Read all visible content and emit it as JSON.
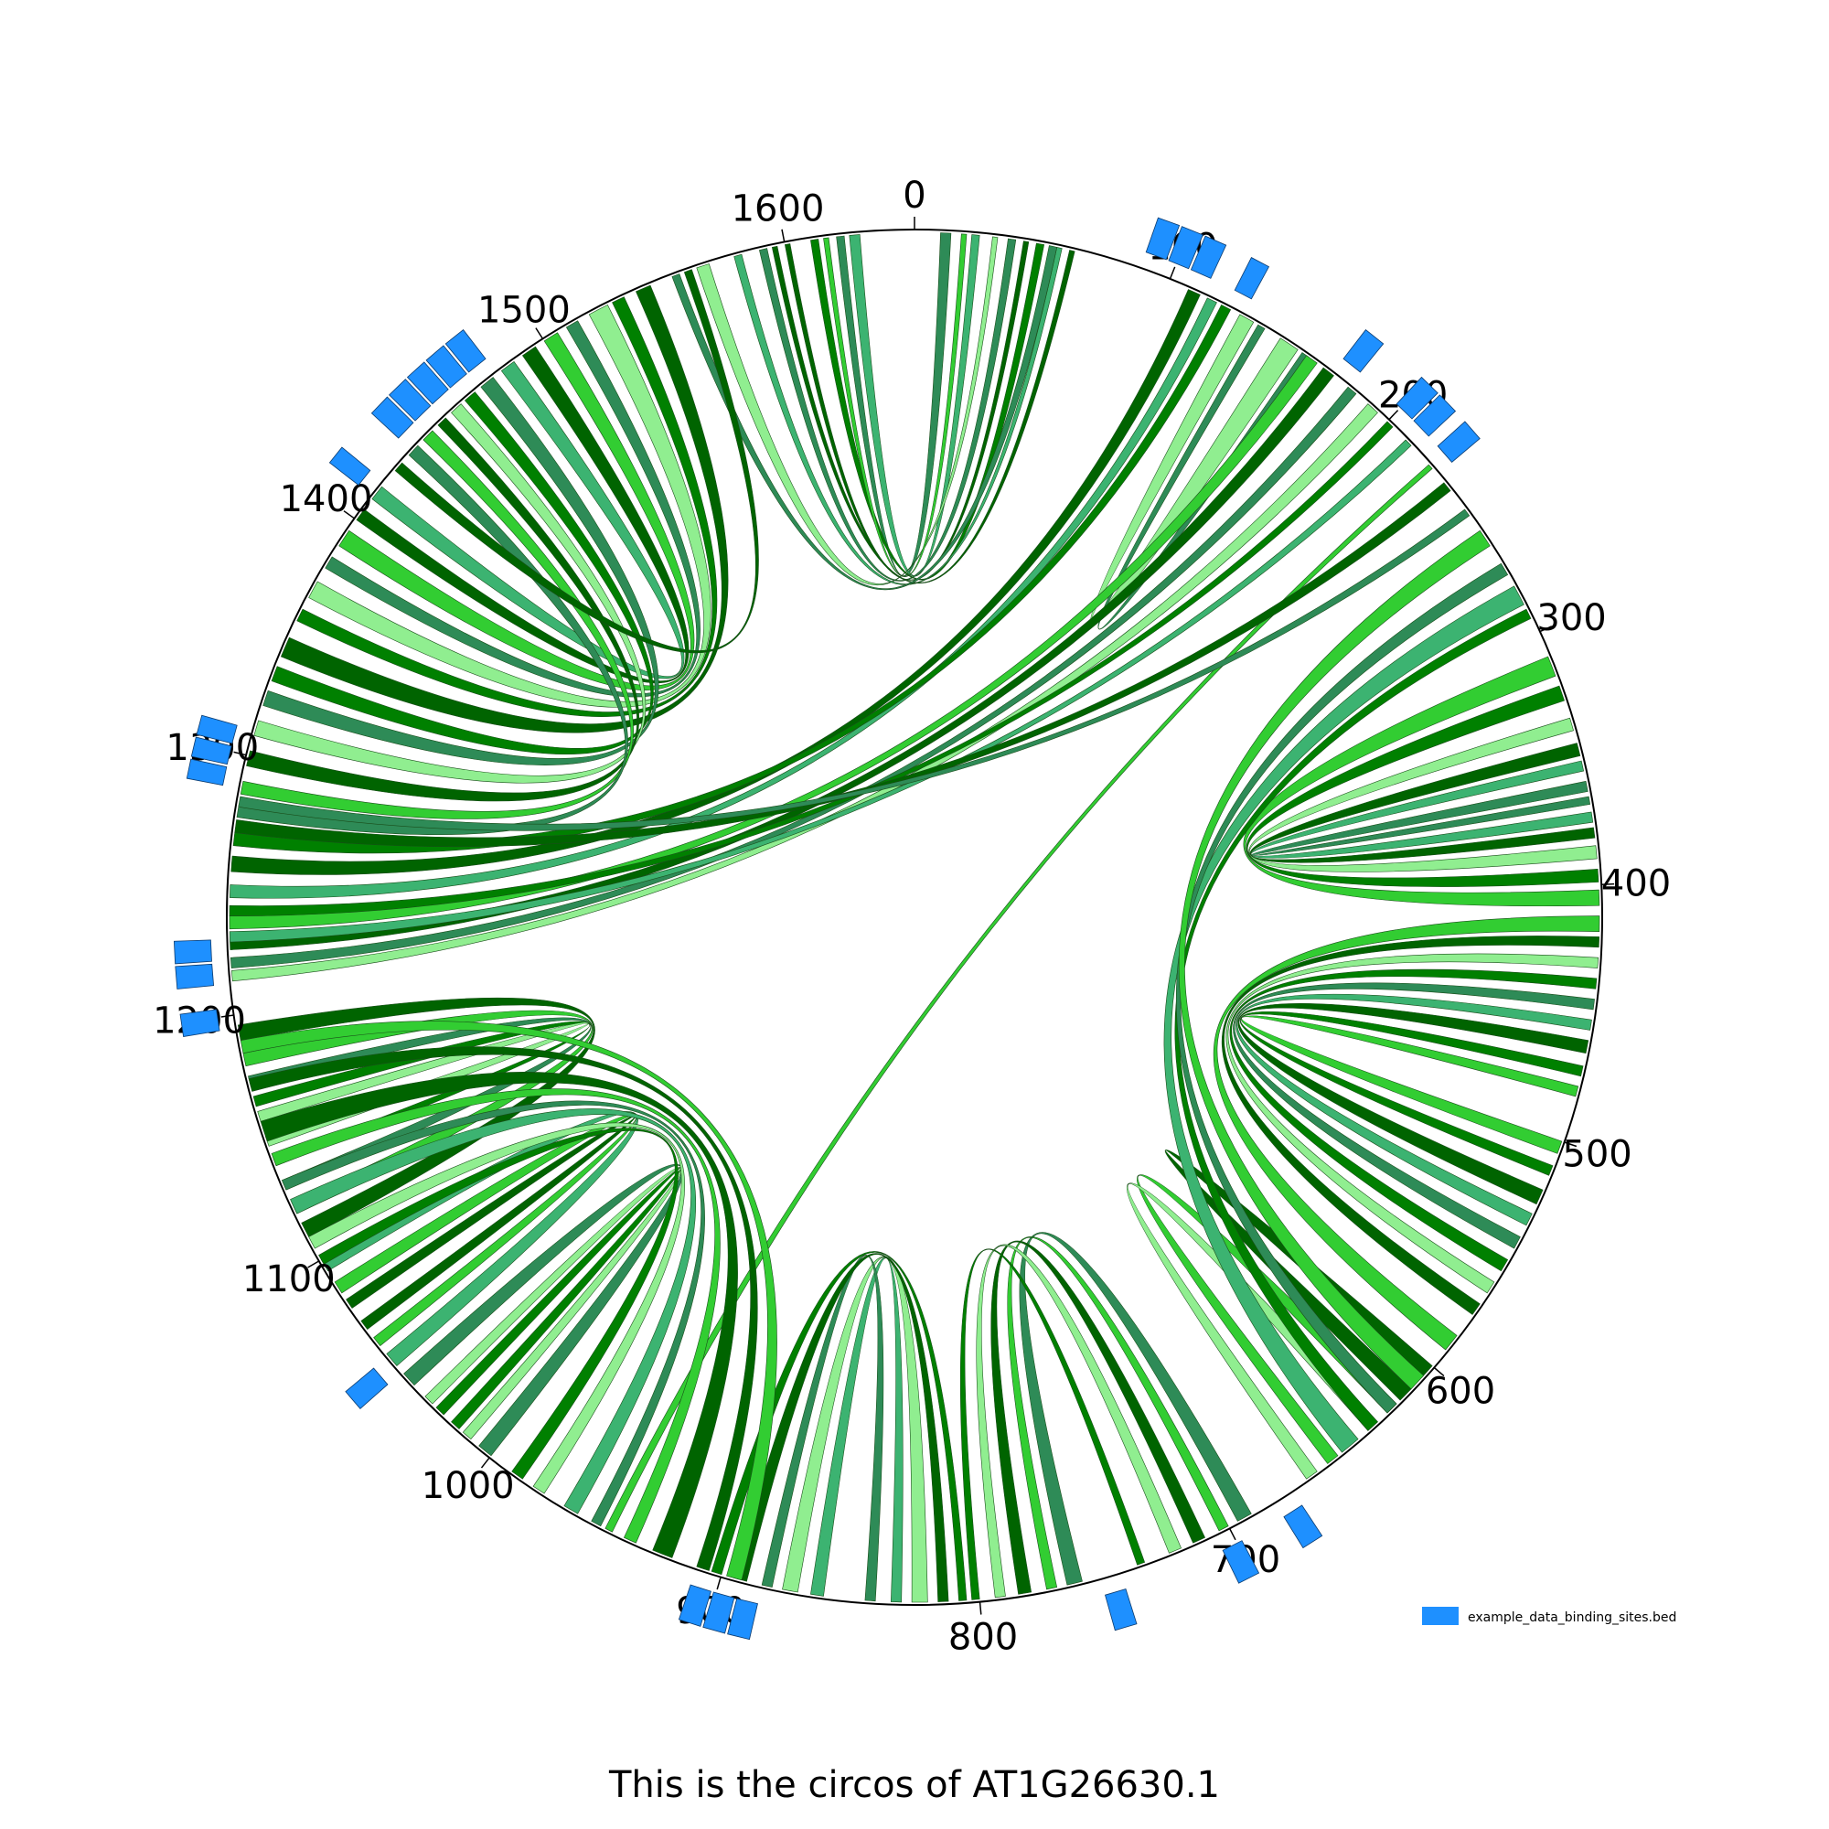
{
  "chart_data": {
    "type": "circos",
    "title": "This is the circos of AT1G26630.1",
    "sequence_length": 1650,
    "ticks": [
      0,
      100,
      200,
      300,
      400,
      500,
      600,
      700,
      800,
      900,
      1000,
      1100,
      1200,
      1300,
      1400,
      1500,
      1600
    ],
    "legend": {
      "label": "example_data_binding_sites.bed",
      "color": "#1e90ff",
      "position": "bottom-right"
    },
    "colors": {
      "outline": "#000000",
      "binding_site": "#1e90ff",
      "link_palette": [
        "#006400",
        "#008000",
        "#2e8b57",
        "#3cb371",
        "#32cd32",
        "#90ee90"
      ]
    },
    "binding_sites": [
      {
        "start": 88,
        "end": 96
      },
      {
        "start": 97,
        "end": 105
      },
      {
        "start": 106,
        "end": 114
      },
      {
        "start": 124,
        "end": 131
      },
      {
        "start": 172,
        "end": 180
      },
      {
        "start": 198,
        "end": 206
      },
      {
        "start": 207,
        "end": 215
      },
      {
        "start": 220,
        "end": 228
      },
      {
        "start": 672,
        "end": 680
      },
      {
        "start": 698,
        "end": 706
      },
      {
        "start": 745,
        "end": 753
      },
      {
        "start": 884,
        "end": 892
      },
      {
        "start": 893,
        "end": 901
      },
      {
        "start": 902,
        "end": 910
      },
      {
        "start": 1047,
        "end": 1055
      },
      {
        "start": 1287,
        "end": 1294
      },
      {
        "start": 1295,
        "end": 1302
      },
      {
        "start": 1303,
        "end": 1310
      },
      {
        "start": 1212,
        "end": 1220
      },
      {
        "start": 1221,
        "end": 1229
      },
      {
        "start": 1195,
        "end": 1203
      },
      {
        "start": 1411,
        "end": 1418
      },
      {
        "start": 1434,
        "end": 1442
      },
      {
        "start": 1443,
        "end": 1451
      },
      {
        "start": 1452,
        "end": 1460
      },
      {
        "start": 1461,
        "end": 1469
      },
      {
        "start": 1470,
        "end": 1478
      }
    ],
    "links": [
      [
        1620,
        1623,
        10,
        14,
        2
      ],
      [
        1625,
        1629,
        22,
        25,
        3
      ],
      [
        1565,
        1570,
        30,
        32,
        5
      ],
      [
        1590,
        1593,
        36,
        39,
        2
      ],
      [
        1600,
        1602,
        42,
        44,
        0
      ],
      [
        1610,
        1613,
        47,
        50,
        1
      ],
      [
        1580,
        1583,
        55,
        57,
        3
      ],
      [
        1595,
        1597,
        60,
        62,
        0
      ],
      [
        1555,
        1558,
        52,
        55,
        2
      ],
      [
        1615,
        1617,
        18,
        20,
        4
      ],
      [
        130,
        136,
        148,
        156,
        5
      ],
      [
        138,
        141,
        158,
        161,
        2
      ],
      [
        1540,
        1546,
        1340,
        1348,
        0
      ],
      [
        1530,
        1535,
        1355,
        1360,
        1
      ],
      [
        1520,
        1528,
        1365,
        1372,
        5
      ],
      [
        1510,
        1515,
        1378,
        1383,
        2
      ],
      [
        1500,
        1506,
        1388,
        1395,
        4
      ],
      [
        1490,
        1496,
        1400,
        1405,
        0
      ],
      [
        1480,
        1486,
        1410,
        1416,
        3
      ],
      [
        1470,
        1476,
        1320,
        1326,
        2
      ],
      [
        1462,
        1467,
        1330,
        1336,
        1
      ],
      [
        1455,
        1460,
        1308,
        1314,
        5
      ],
      [
        1448,
        1452,
        1296,
        1302,
        0
      ],
      [
        1440,
        1445,
        1285,
        1290,
        4
      ],
      [
        1432,
        1437,
        1276,
        1281,
        2
      ],
      [
        1560,
        1563,
        1424,
        1428,
        0
      ],
      [
        108,
        113,
        1255,
        1261,
        0
      ],
      [
        116,
        120,
        1245,
        1250,
        3
      ],
      [
        122,
        126,
        1265,
        1270,
        1
      ],
      [
        160,
        165,
        1233,
        1238,
        4
      ],
      [
        168,
        173,
        1225,
        1230,
        0
      ],
      [
        180,
        184,
        1218,
        1222,
        2
      ],
      [
        190,
        195,
        1213,
        1217,
        5
      ],
      [
        200,
        203,
        1238,
        1242,
        1
      ],
      [
        210,
        213,
        1228,
        1232,
        3
      ],
      [
        223,
        225,
        945,
        948,
        4
      ],
      [
        232,
        236,
        1270,
        1275,
        0
      ],
      [
        245,
        248,
        1280,
        1284,
        2
      ],
      [
        310,
        318,
        402,
        408,
        4
      ],
      [
        322,
        328,
        394,
        399,
        1
      ],
      [
        335,
        340,
        385,
        390,
        5
      ],
      [
        345,
        350,
        378,
        382,
        0
      ],
      [
        352,
        356,
        372,
        376,
        3
      ],
      [
        360,
        364,
        366,
        369,
        2
      ],
      [
        412,
        418,
        585,
        592,
        4
      ],
      [
        420,
        424,
        570,
        575,
        0
      ],
      [
        428,
        432,
        560,
        565,
        5
      ],
      [
        436,
        440,
        550,
        555,
        1
      ],
      [
        444,
        448,
        540,
        545,
        2
      ],
      [
        452,
        456,
        530,
        535,
        3
      ],
      [
        460,
        465,
        520,
        526,
        0
      ],
      [
        470,
        474,
        510,
        514,
        1
      ],
      [
        478,
        482,
        500,
        505,
        4
      ],
      [
        600,
        606,
        612,
        618,
        0
      ],
      [
        620,
        625,
        650,
        655,
        4
      ],
      [
        630,
        635,
        660,
        665,
        5
      ],
      [
        280,
        288,
        640,
        648,
        3
      ],
      [
        290,
        294,
        630,
        635,
        1
      ],
      [
        270,
        275,
        620,
        625,
        2
      ],
      [
        255,
        262,
        605,
        612,
        4
      ],
      [
        760,
        766,
        690,
        696,
        2
      ],
      [
        770,
        774,
        700,
        704,
        4
      ],
      [
        780,
        785,
        710,
        715,
        0
      ],
      [
        790,
        794,
        720,
        725,
        5
      ],
      [
        800,
        803,
        735,
        738,
        1
      ],
      [
        820,
        826,
        870,
        876,
        5
      ],
      [
        830,
        834,
        860,
        865,
        3
      ],
      [
        840,
        844,
        880,
        884,
        2
      ],
      [
        812,
        816,
        890,
        895,
        0
      ],
      [
        805,
        808,
        900,
        904,
        1
      ],
      [
        1110,
        1116,
        1190,
        1196,
        0
      ],
      [
        1120,
        1125,
        1180,
        1185,
        4
      ],
      [
        1130,
        1134,
        1172,
        1176,
        2
      ],
      [
        1140,
        1143,
        1164,
        1168,
        1
      ],
      [
        1148,
        1152,
        1158,
        1162,
        5
      ],
      [
        1050,
        1056,
        1095,
        1100,
        3
      ],
      [
        1060,
        1064,
        1085,
        1090,
        4
      ],
      [
        1068,
        1072,
        1078,
        1082,
        0
      ],
      [
        1000,
        1006,
        1040,
        1046,
        2
      ],
      [
        1010,
        1014,
        1030,
        1034,
        5
      ],
      [
        1016,
        1020,
        1024,
        1028,
        1
      ],
      [
        920,
        928,
        1150,
        1158,
        0
      ],
      [
        935,
        940,
        1140,
        1145,
        4
      ],
      [
        950,
        954,
        1130,
        1134,
        2
      ],
      [
        960,
        966,
        1120,
        1126,
        3
      ],
      [
        975,
        980,
        1105,
        1110,
        5
      ],
      [
        985,
        990,
        1098,
        1102,
        1
      ],
      [
        892,
        898,
        1185,
        1190,
        4
      ],
      [
        905,
        910,
        1170,
        1175,
        0
      ]
    ]
  }
}
